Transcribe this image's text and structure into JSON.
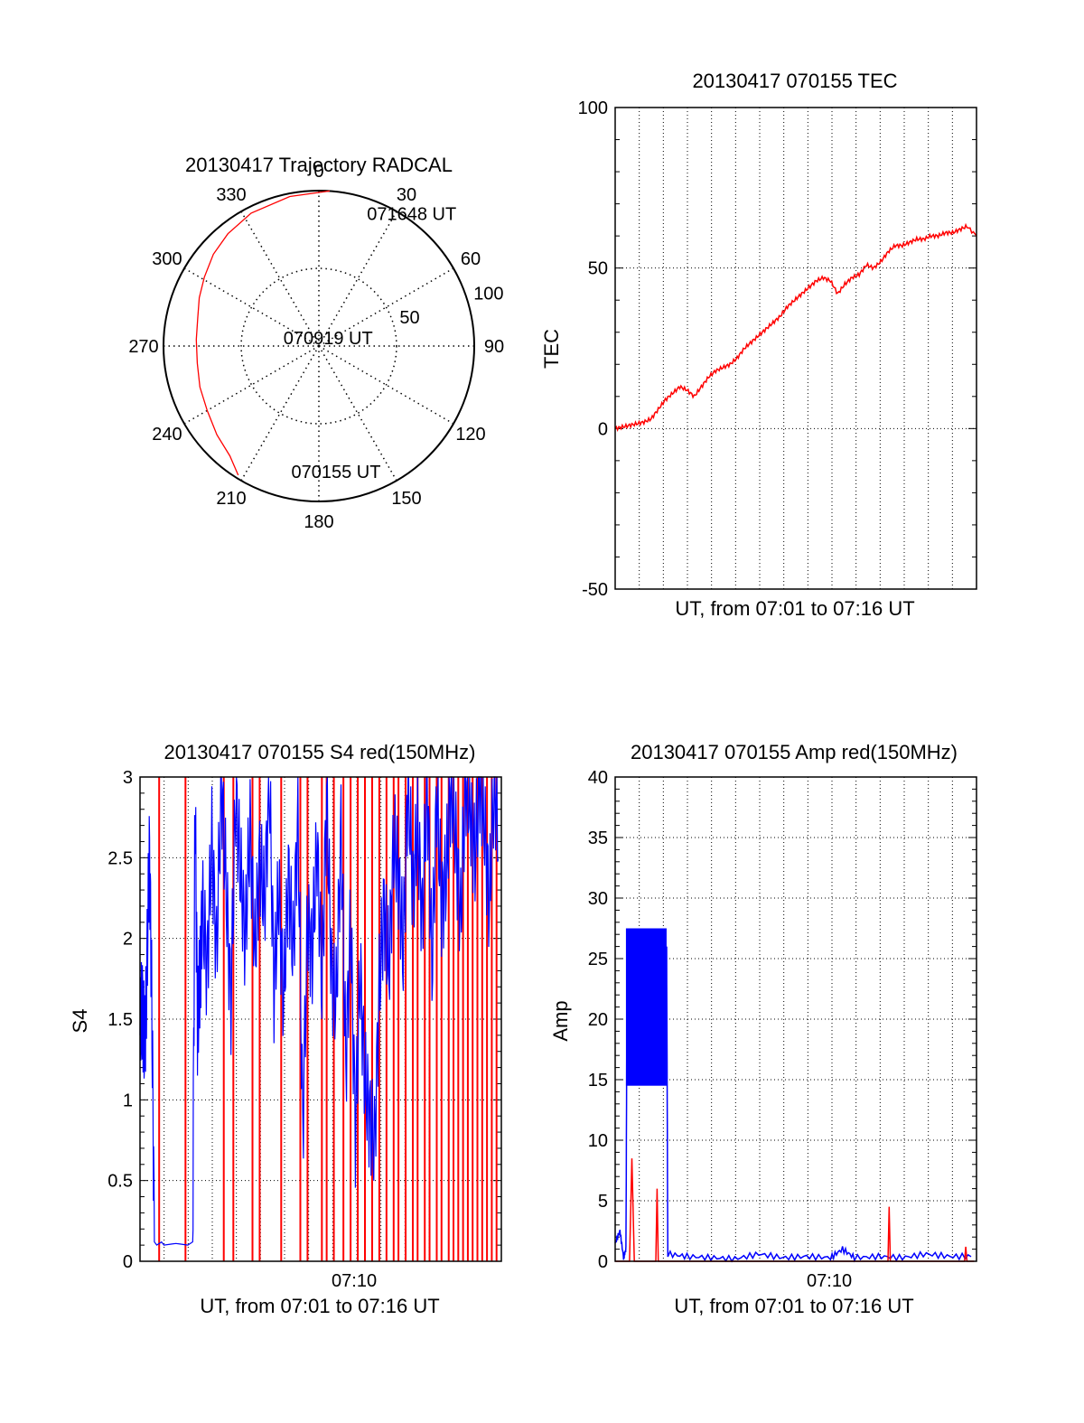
{
  "chart_data": [
    {
      "type": "polar",
      "title": "20130417 Trajectory RADCAL",
      "angle_labels": [
        "0",
        "30",
        "60",
        "90",
        "120",
        "150",
        "180",
        "210",
        "240",
        "270",
        "300",
        "330"
      ],
      "radial_labels": [
        "50",
        "100"
      ],
      "radial_range": [
        0,
        100
      ],
      "grid": true,
      "trajectory": {
        "color": "#ff0000",
        "azimuth": [
          212,
          219,
          229,
          240,
          251,
          262,
          273,
          283,
          292,
          301,
          311,
          321,
          333,
          349,
          364
        ],
        "distance": [
          98,
          91,
          87,
          83,
          81,
          79,
          79,
          80,
          83,
          86,
          90,
          93,
          96,
          98,
          100
        ]
      },
      "annotations": [
        {
          "text": "071648 UT",
          "azimuth": 22,
          "distance": 92
        },
        {
          "text": "070919 UT",
          "azimuth": 285,
          "distance": 20
        },
        {
          "text": "070155 UT",
          "azimuth": 190,
          "distance": 82
        }
      ]
    },
    {
      "type": "line",
      "title": "20130417 070155 TEC",
      "xlabel": "UT, from 07:01 to 07:16 UT",
      "ylabel": "TEC",
      "xlim": [
        0,
        15.1
      ],
      "ylim": [
        -50,
        100
      ],
      "yticks": [
        "-50",
        "0",
        "50",
        "100"
      ],
      "grid": true,
      "series": [
        {
          "color": "#ff0000",
          "x": [
            0,
            0.3,
            0.6,
            0.9,
            1.2,
            1.5,
            1.8,
            2.1,
            2.4,
            2.7,
            3.0,
            3.3,
            3.6,
            3.9,
            4.2,
            4.5,
            4.8,
            5.1,
            5.4,
            5.7,
            6.0,
            6.3,
            6.6,
            6.9,
            7.2,
            7.5,
            7.8,
            8.1,
            8.4,
            8.7,
            9.0,
            9.3,
            9.6,
            9.9,
            10.2,
            10.5,
            10.8,
            11.1,
            11.4,
            11.7,
            12.0,
            12.3,
            12.6,
            12.9,
            13.2,
            13.5,
            13.8,
            14.1,
            14.4,
            14.7,
            15.1
          ],
          "y": [
            0,
            0.5,
            1,
            1.5,
            2,
            3,
            6,
            9,
            11,
            13,
            12,
            10,
            13,
            16,
            18,
            19,
            20,
            22,
            25,
            27,
            29,
            31,
            33,
            35,
            38,
            40,
            42,
            44,
            46,
            47,
            46,
            42,
            45,
            47,
            48,
            51,
            50,
            52,
            55,
            57,
            57,
            58,
            59,
            59,
            60,
            60,
            61,
            61,
            62,
            63,
            60
          ]
        }
      ]
    },
    {
      "type": "line",
      "title": "20130417 070155 S4 red(150MHz)",
      "xlabel": "UT, from 07:01 to 07:16 UT",
      "ylabel": "S4",
      "xlim": [
        0,
        15.1
      ],
      "ylim": [
        0,
        3
      ],
      "yticks": [
        "0",
        "0.5",
        "1",
        "1.5",
        "2",
        "2.5",
        "3"
      ],
      "xticks": [
        {
          "value": 8.95,
          "label": "07:10"
        }
      ],
      "grid": true,
      "series": [
        {
          "color": "#0000ff",
          "x": [
            0,
            0.1,
            0.2,
            0.3,
            0.4,
            0.5,
            0.6,
            0.7,
            0.8,
            0.9,
            1.0,
            1.5,
            2.0,
            2.2,
            2.3,
            2.4,
            2.5,
            2.6,
            2.8,
            3.0,
            3.2,
            3.4,
            3.6,
            3.8,
            4.0,
            4.2,
            4.4,
            4.6,
            4.8,
            5.0,
            5.2,
            5.4,
            5.6,
            5.8,
            6.0,
            6.2,
            6.4,
            6.6,
            6.8,
            7.0,
            7.2,
            7.4,
            7.6,
            7.8,
            8.0,
            8.2,
            8.4,
            8.6,
            8.8,
            9.0,
            9.2,
            9.4,
            9.6,
            9.8,
            10.0,
            10.2,
            10.4,
            10.6,
            10.8,
            11.0,
            11.2,
            11.4,
            11.6,
            11.8,
            12.0,
            12.2,
            12.4,
            12.6,
            12.8,
            13.0,
            13.2,
            13.4,
            13.6,
            13.8,
            14.0,
            14.2,
            14.4,
            14.6,
            14.8,
            15.0
          ],
          "y": [
            1.4,
            1.6,
            1.3,
            1.9,
            2.55,
            1.5,
            0.12,
            0.1,
            0.11,
            0.12,
            0.1,
            0.11,
            0.1,
            0.12,
            2.85,
            1.5,
            1.7,
            2.2,
            1.8,
            2.6,
            1.9,
            3.0,
            2.3,
            1.6,
            2.9,
            2.4,
            2.0,
            2.7,
            1.9,
            2.5,
            2.2,
            3.0,
            1.7,
            2.3,
            1.6,
            2.4,
            1.9,
            2.8,
            0.8,
            2.1,
            1.9,
            2.6,
            1.7,
            2.9,
            1.8,
            1.6,
            2.7,
            1.2,
            2.1,
            0.8,
            1.8,
            1.1,
            0.9,
            0.7,
            1.7,
            2.2,
            1.8,
            2.6,
            2.4,
            1.9,
            3.0,
            2.3,
            2.7,
            2.1,
            3.0,
            1.8,
            2.9,
            2.2,
            2.4,
            3.0,
            2.6,
            2.1,
            3.0,
            2.8,
            2.5,
            3.0,
            2.7,
            2.2,
            3.0,
            2.6
          ]
        },
        {
          "color": "#ff0000",
          "spikes_x": [
            0.8,
            1.9,
            3.5,
            3.9,
            4.7,
            5.0,
            5.9,
            6.7,
            7.0,
            7.6,
            7.8,
            8.1,
            8.5,
            8.8,
            9.1,
            9.4,
            9.7,
            10.0,
            10.3,
            10.6,
            10.8,
            11.1,
            11.4,
            11.6,
            11.9,
            12.1,
            12.4,
            12.6,
            12.9,
            13.1,
            13.3,
            13.5,
            13.7,
            13.9,
            14.1,
            14.3,
            14.5,
            14.7,
            14.9
          ],
          "spike_y": [
            0,
            3
          ]
        }
      ]
    },
    {
      "type": "line",
      "title": "20130417 070155 Amp red(150MHz)",
      "xlabel": "UT, from 07:01 to 07:16 UT",
      "ylabel": "Amp",
      "xlim": [
        0,
        15.1
      ],
      "ylim": [
        0,
        40
      ],
      "yticks": [
        "0",
        "5",
        "10",
        "15",
        "20",
        "25",
        "30",
        "35",
        "40"
      ],
      "xticks": [
        {
          "value": 8.95,
          "label": "07:10"
        }
      ],
      "grid": true,
      "series": [
        {
          "color": "#0000ff",
          "x": [
            0,
            0.2,
            0.35,
            0.45,
            0.5,
            0.8,
            1.1,
            1.4,
            1.7,
            2.0,
            2.15,
            2.2,
            3.0,
            4.0,
            5.0,
            6.0,
            7.0,
            8.0,
            9.0,
            9.5,
            10.0,
            11.0,
            12.0,
            13.0,
            14.0,
            15.0
          ],
          "y": [
            1.5,
            2.5,
            0.3,
            1.0,
            25.0,
            21.0,
            24.0,
            17.0,
            23.0,
            20.0,
            26.0,
            0.6,
            0.4,
            0.3,
            0.2,
            0.6,
            0.3,
            0.4,
            0.3,
            1.0,
            0.3,
            0.4,
            0.3,
            0.6,
            0.4,
            0.4
          ],
          "band_x": [
            0.45,
            2.15
          ],
          "band_y": [
            14.5,
            27.5
          ]
        },
        {
          "color": "#ff0000",
          "x": [
            0,
            0.6,
            0.7,
            0.8,
            1.7,
            1.75,
            1.8,
            11.4,
            11.45,
            11.5,
            14.6,
            14.65,
            14.7,
            15.0
          ],
          "y": [
            0,
            0,
            8.5,
            0,
            0,
            6.0,
            0,
            0,
            4.5,
            0,
            0,
            1.2,
            0,
            0
          ]
        }
      ]
    }
  ]
}
